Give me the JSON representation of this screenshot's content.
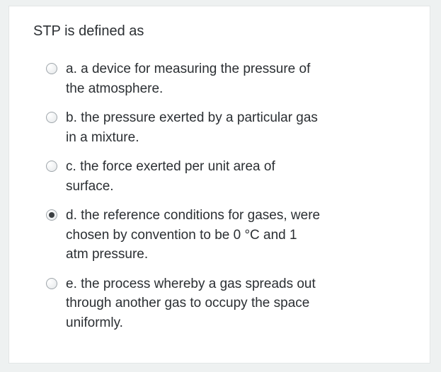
{
  "question": {
    "prompt": "STP is defined as",
    "selected_index": 3,
    "options": [
      {
        "letter": "a.",
        "text": "a device for measuring the pressure of the atmosphere."
      },
      {
        "letter": "b.",
        "text": "the pressure exerted by a particular gas in a mixture."
      },
      {
        "letter": "c.",
        "text": "the force exerted per unit area of surface."
      },
      {
        "letter": "d.",
        "text": "the reference conditions for gases, were chosen by convention to be 0 °C and 1 atm pressure."
      },
      {
        "letter": "e.",
        "text": "the process whereby a gas spreads out through another gas to occupy the space uniformly."
      }
    ]
  },
  "colors": {
    "page_bg": "#eef1f1",
    "card_bg": "#ffffff",
    "text": "#2b2f33",
    "radio_border": "#9fa6ab",
    "radio_dot": "#3b3f42"
  },
  "typography": {
    "font_family": "Arial, Helvetica, sans-serif",
    "question_fontsize": 20,
    "option_fontsize": 19,
    "line_height": 1.45
  }
}
